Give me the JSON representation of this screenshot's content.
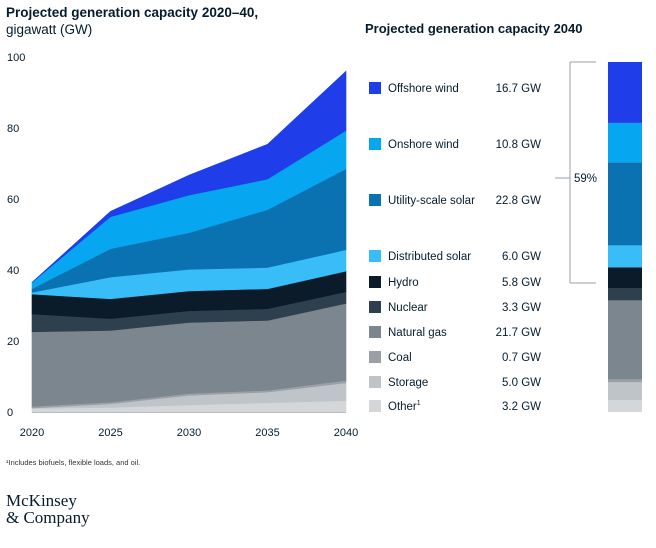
{
  "header": {
    "title_line1": "Projected generation capacity 2020–40,",
    "title_line2": "gigawatt (GW)"
  },
  "right_title": "Projected generation capacity 2040",
  "bracket_label": "59%",
  "footnote": "¹Includes biofuels, flexible loads, and oil.",
  "logo": {
    "line1": "McKinsey",
    "line2": "& Company"
  },
  "chart_data": {
    "type": "area",
    "stacked": true,
    "x": [
      2020,
      2025,
      2030,
      2035,
      2040
    ],
    "xticks": [
      "2020",
      "2025",
      "2030",
      "2035",
      "2040"
    ],
    "ylim": [
      0,
      100
    ],
    "yticks": [
      "0",
      "20",
      "40",
      "60",
      "80",
      "100"
    ],
    "series": [
      {
        "name": "Other",
        "sup": "1",
        "color": "#d4d7da",
        "values": [
          1.0,
          1.3,
          2.0,
          2.6,
          3.2
        ],
        "label_2040": "3.2 GW"
      },
      {
        "name": "Storage",
        "color": "#bfc4c9",
        "values": [
          0.1,
          1.0,
          2.7,
          3.0,
          5.0
        ],
        "label_2040": "5.0 GW"
      },
      {
        "name": "Coal",
        "color": "#9aa0a6",
        "values": [
          0.5,
          0.5,
          0.5,
          0.5,
          0.7
        ],
        "label_2040": "0.7 GW"
      },
      {
        "name": "Natural gas",
        "color": "#7b868f",
        "values": [
          21.0,
          20.2,
          20.0,
          19.7,
          21.7
        ],
        "label_2040": "21.7 GW"
      },
      {
        "name": "Nuclear",
        "color": "#2e3f4e",
        "values": [
          5.0,
          3.3,
          3.3,
          3.3,
          3.3
        ],
        "label_2040": "3.3  GW"
      },
      {
        "name": "Hydro",
        "color": "#0b1b29",
        "values": [
          5.6,
          5.6,
          5.6,
          5.6,
          5.8
        ],
        "label_2040": "5.8 GW"
      },
      {
        "name": "Distributed solar",
        "color": "#38bdf8",
        "values": [
          0.5,
          6.1,
          6.1,
          6.0,
          6.0
        ],
        "label_2040": "6.0 GW"
      },
      {
        "name": "Utility-scale solar",
        "color": "#0a72b0",
        "values": [
          1.0,
          8.0,
          10.3,
          16.3,
          22.8
        ],
        "label_2040": "22.8 GW"
      },
      {
        "name": "Onshore wind",
        "color": "#06a7f0",
        "values": [
          1.8,
          9.0,
          10.6,
          8.6,
          10.8
        ],
        "label_2040": "10.8 GW"
      },
      {
        "name": "Offshore wind",
        "color": "#1f3de8",
        "values": [
          0.0,
          1.5,
          5.6,
          9.8,
          16.7
        ],
        "label_2040": "16.7 GW"
      }
    ]
  }
}
